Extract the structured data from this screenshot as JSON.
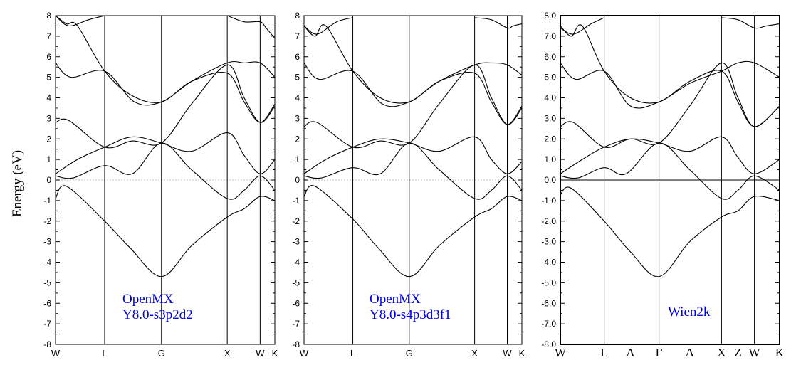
{
  "ylabel": "Energy (eV)",
  "chart_data": [
    {
      "type": "line",
      "title": "",
      "annotation": [
        "OpenMX",
        "Y8.0-s3p2d2"
      ],
      "annotation_color": "#0000dd",
      "xlabel": "",
      "ylabel": "Energy (eV)",
      "ylim": [
        -8,
        8
      ],
      "yticks": [
        "-8",
        "-7",
        "-6",
        "-5",
        "-4",
        "-3",
        "-2",
        "-1",
        "0",
        "1",
        "2",
        "3",
        "4",
        "5",
        "6",
        "7",
        "8"
      ],
      "kpoints": [
        {
          "label": "W",
          "pos": 0
        },
        {
          "label": "L",
          "pos": 0.224
        },
        {
          "label": "G",
          "pos": 0.483
        },
        {
          "label": "X",
          "pos": 0.783
        },
        {
          "label": "W",
          "pos": 0.933
        },
        {
          "label": "K",
          "pos": 1.0
        }
      ],
      "fermi_line": "dotted",
      "series": [
        {
          "x": [
            0,
            0.05,
            0.224,
            0.34,
            0.483,
            0.62,
            0.783,
            0.86,
            0.933,
            1.0
          ],
          "values": [
            -0.9,
            -0.3,
            -2.0,
            -3.3,
            -4.7,
            -3.2,
            -1.8,
            -1.4,
            -0.8,
            -1.0
          ]
        },
        {
          "x": [
            0,
            0.08,
            0.224,
            0.35,
            0.483,
            0.62,
            0.783,
            0.86,
            0.933,
            1.0
          ],
          "values": [
            0.2,
            0.1,
            0.7,
            0.3,
            1.8,
            0.5,
            -0.9,
            -0.5,
            0.2,
            -0.5
          ]
        },
        {
          "x": [
            0,
            0.1,
            0.224,
            0.35,
            0.483,
            0.62,
            0.783,
            0.86,
            0.933,
            1.0
          ],
          "values": [
            0.3,
            1.0,
            1.6,
            2.1,
            1.8,
            1.4,
            2.3,
            1.2,
            0.3,
            1.0
          ]
        },
        {
          "x": [
            0,
            0.06,
            0.224,
            0.35,
            0.483,
            0.62,
            0.783,
            0.86,
            0.933,
            1.0
          ],
          "values": [
            2.8,
            2.9,
            1.6,
            1.9,
            1.8,
            3.7,
            5.6,
            4.0,
            2.8,
            3.6
          ]
        },
        {
          "x": [
            0,
            0.07,
            0.224,
            0.36,
            0.483,
            0.62,
            0.783,
            0.86,
            0.933,
            1.0
          ],
          "values": [
            5.7,
            5.0,
            5.3,
            3.8,
            3.8,
            4.8,
            5.7,
            5.7,
            5.7,
            5.0
          ]
        },
        {
          "x": [
            0,
            0.05,
            0.1,
            0.224,
            0.35,
            0.483,
            0.62,
            0.783,
            0.86,
            0.933,
            1.0
          ],
          "values": [
            8.0,
            7.6,
            7.5,
            5.3,
            4.1,
            3.8,
            4.8,
            5.2,
            3.8,
            2.8,
            3.7
          ]
        },
        {
          "x": [
            0,
            0.06,
            0.15,
            0.224
          ],
          "values": [
            8.0,
            7.5,
            7.8,
            8.0
          ]
        },
        {
          "x": [
            0.783,
            0.86,
            0.933,
            0.96,
            1.0
          ],
          "values": [
            8.0,
            7.7,
            7.7,
            7.4,
            6.9
          ]
        }
      ]
    },
    {
      "type": "line",
      "title": "",
      "annotation": [
        "OpenMX",
        "Y8.0-s4p3d3f1"
      ],
      "annotation_color": "#0000dd",
      "xlabel": "",
      "ylabel": "",
      "ylim": [
        -8,
        8
      ],
      "yticks": [
        "-8",
        "-7",
        "-6",
        "-5",
        "-4",
        "-3",
        "-2",
        "-1",
        "0",
        "1",
        "2",
        "3",
        "4",
        "5",
        "6",
        "7",
        "8"
      ],
      "kpoints": [
        {
          "label": "W",
          "pos": 0
        },
        {
          "label": "L",
          "pos": 0.224
        },
        {
          "label": "G",
          "pos": 0.483
        },
        {
          "label": "X",
          "pos": 0.783
        },
        {
          "label": "W",
          "pos": 0.933
        },
        {
          "label": "K",
          "pos": 1.0
        }
      ],
      "fermi_line": "dotted",
      "series": [
        {
          "x": [
            0,
            0.05,
            0.224,
            0.34,
            0.483,
            0.62,
            0.783,
            0.86,
            0.933,
            1.0
          ],
          "values": [
            -0.8,
            -0.3,
            -1.9,
            -3.3,
            -4.7,
            -3.2,
            -1.8,
            -1.4,
            -0.8,
            -1.0
          ]
        },
        {
          "x": [
            0,
            0.08,
            0.224,
            0.35,
            0.483,
            0.62,
            0.783,
            0.86,
            0.933,
            1.0
          ],
          "values": [
            0.2,
            0.1,
            0.6,
            0.3,
            1.8,
            0.5,
            -0.9,
            -0.5,
            0.2,
            -0.5
          ]
        },
        {
          "x": [
            0,
            0.1,
            0.224,
            0.35,
            0.483,
            0.62,
            0.783,
            0.86,
            0.933,
            1.0
          ],
          "values": [
            0.3,
            1.0,
            1.6,
            2.0,
            1.8,
            1.4,
            2.1,
            1.0,
            0.3,
            0.9
          ]
        },
        {
          "x": [
            0,
            0.06,
            0.224,
            0.35,
            0.483,
            0.62,
            0.783,
            0.86,
            0.933,
            1.0
          ],
          "values": [
            2.6,
            2.8,
            1.6,
            1.9,
            1.8,
            3.7,
            5.6,
            4.0,
            2.7,
            3.5
          ]
        },
        {
          "x": [
            0,
            0.07,
            0.224,
            0.36,
            0.483,
            0.62,
            0.783,
            0.86,
            0.933,
            1.0
          ],
          "values": [
            5.7,
            4.9,
            5.3,
            3.7,
            3.8,
            4.8,
            5.6,
            5.7,
            5.6,
            5.1
          ]
        },
        {
          "x": [
            0,
            0.05,
            0.1,
            0.224,
            0.35,
            0.483,
            0.62,
            0.783,
            0.86,
            0.933,
            1.0
          ],
          "values": [
            7.5,
            7.0,
            7.5,
            5.3,
            4.0,
            3.8,
            4.8,
            5.2,
            3.8,
            2.7,
            3.6
          ]
        },
        {
          "x": [
            0,
            0.06,
            0.15,
            0.224
          ],
          "values": [
            7.5,
            7.1,
            7.7,
            7.9
          ]
        },
        {
          "x": [
            0.783,
            0.86,
            0.933,
            0.96,
            1.0
          ],
          "values": [
            7.9,
            7.8,
            7.4,
            7.5,
            7.6
          ]
        }
      ]
    },
    {
      "type": "line",
      "title": "",
      "annotation": [
        "Wien2k"
      ],
      "annotation_color": "#0000dd",
      "xlabel": "",
      "ylabel": "",
      "ylim": [
        -8,
        8
      ],
      "yticks": [
        "-8.0",
        "-7.0",
        "-6.0",
        "-5.0",
        "-4.0",
        "-3.0",
        "-2.0",
        "-1.0",
        "0.0",
        "1.0",
        "2.0",
        "3.0",
        "4.0",
        "5.0",
        "6.0",
        "7.0",
        "8.0"
      ],
      "kpoints": [
        {
          "label": "W",
          "pos": 0
        },
        {
          "label": "L",
          "pos": 0.2
        },
        {
          "label": "Λ",
          "pos": 0.32
        },
        {
          "label": "Γ",
          "pos": 0.45
        },
        {
          "label": "Δ",
          "pos": 0.59
        },
        {
          "label": "X",
          "pos": 0.735
        },
        {
          "label": "Z",
          "pos": 0.81
        },
        {
          "label": "W",
          "pos": 0.885
        },
        {
          "label": "K",
          "pos": 1.0
        }
      ],
      "vlines": [
        0,
        0.2,
        0.45,
        0.735,
        0.885,
        1.0
      ],
      "fermi_line": "solid",
      "series": [
        {
          "x": [
            0,
            0.05,
            0.2,
            0.32,
            0.45,
            0.59,
            0.735,
            0.81,
            0.885,
            1.0
          ],
          "values": [
            -0.7,
            -0.4,
            -2.0,
            -3.5,
            -4.7,
            -3.0,
            -1.8,
            -1.5,
            -0.8,
            -1.0
          ]
        },
        {
          "x": [
            0,
            0.08,
            0.2,
            0.3,
            0.45,
            0.59,
            0.735,
            0.81,
            0.885,
            1.0
          ],
          "values": [
            0.2,
            0.1,
            0.6,
            0.3,
            1.8,
            0.5,
            -0.9,
            -0.5,
            0.2,
            -0.5
          ]
        },
        {
          "x": [
            0,
            0.1,
            0.2,
            0.32,
            0.45,
            0.59,
            0.735,
            0.81,
            0.885,
            1.0
          ],
          "values": [
            0.3,
            1.0,
            1.6,
            2.0,
            1.8,
            1.4,
            2.1,
            1.1,
            0.3,
            1.0
          ]
        },
        {
          "x": [
            0,
            0.06,
            0.2,
            0.32,
            0.45,
            0.59,
            0.735,
            0.81,
            0.885,
            1.0
          ],
          "values": [
            2.6,
            2.8,
            1.6,
            2.0,
            1.8,
            3.6,
            5.7,
            4.0,
            2.6,
            3.6
          ]
        },
        {
          "x": [
            0,
            0.07,
            0.2,
            0.32,
            0.45,
            0.59,
            0.735,
            0.81,
            0.885,
            1.0
          ],
          "values": [
            5.7,
            4.9,
            5.3,
            3.6,
            3.8,
            4.7,
            5.3,
            5.7,
            5.7,
            5.0
          ]
        },
        {
          "x": [
            0,
            0.05,
            0.1,
            0.2,
            0.32,
            0.45,
            0.59,
            0.735,
            0.81,
            0.885,
            1.0
          ],
          "values": [
            7.5,
            7.0,
            7.5,
            5.3,
            4.0,
            3.8,
            4.8,
            5.3,
            3.8,
            2.6,
            3.6
          ]
        },
        {
          "x": [
            0,
            0.06,
            0.14,
            0.2
          ],
          "values": [
            7.4,
            7.1,
            7.6,
            7.9
          ]
        },
        {
          "x": [
            0.735,
            0.81,
            0.885,
            0.94,
            1.0
          ],
          "values": [
            7.9,
            7.8,
            7.4,
            7.5,
            7.6
          ]
        }
      ]
    }
  ]
}
